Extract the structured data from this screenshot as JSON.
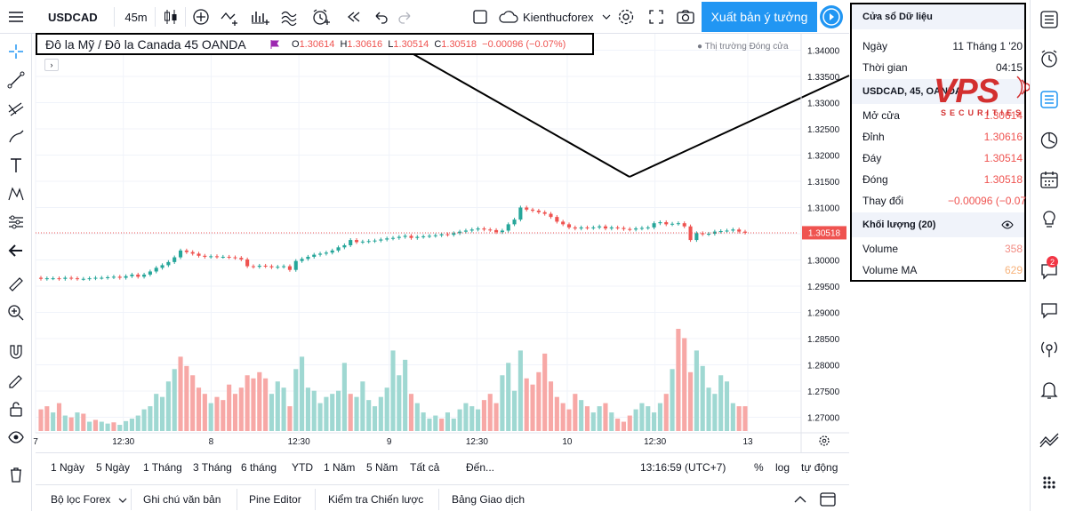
{
  "toolbar": {
    "symbol": "USDCAD",
    "interval": "45m",
    "account": "Kienthucforex",
    "publish_label": "Xuất bản ý tưởng"
  },
  "legend": {
    "title": "Đô la Mỹ / Đô la Canada  45  OANDA",
    "open_label": "O",
    "open": "1.30614",
    "high_label": "H",
    "high": "1.30616",
    "low_label": "L",
    "low": "1.30514",
    "close_label": "C",
    "close": "1.30518",
    "change": "−0.00096 (−0.07%)",
    "market_status": "● Thị trường Đóng cửa",
    "expand": "›"
  },
  "chart_data": {
    "type": "candlestick",
    "symbol": "USDCAD",
    "interval": "45m",
    "last_price": 1.30518,
    "y_ticks": [
      1.34,
      1.335,
      1.33,
      1.325,
      1.32,
      1.315,
      1.31,
      1.305,
      1.3,
      1.295,
      1.29,
      1.285,
      1.28,
      1.275,
      1.27
    ],
    "y_tick_labels": [
      "1.34000",
      "1.33500",
      "1.33000",
      "1.32500",
      "1.32000",
      "1.31500",
      "1.31000",
      "1.30500",
      "1.30000",
      "1.29500",
      "1.29000",
      "1.28500",
      "1.28000",
      "1.27500",
      "1.27000"
    ],
    "x_tick_labels": [
      "7",
      "12:30",
      "8",
      "12:30",
      "9",
      "12:30",
      "10",
      "12:30",
      "13"
    ],
    "close_series": [
      1.2964,
      1.2965,
      1.2965,
      1.2964,
      1.2966,
      1.2965,
      1.2964,
      1.2964,
      1.2965,
      1.2966,
      1.2966,
      1.2967,
      1.2968,
      1.2966,
      1.2969,
      1.2972,
      1.2968,
      1.2972,
      1.2978,
      1.2985,
      1.299,
      1.2996,
      1.3005,
      1.3018,
      1.3015,
      1.3012,
      1.3008,
      1.3006,
      1.3007,
      1.3006,
      1.3006,
      1.3005,
      1.3004,
      1.3001,
      1.2988,
      1.2987,
      1.2989,
      1.2988,
      1.2986,
      1.2987,
      1.2988,
      1.2981,
      1.2998,
      1.3002,
      1.3006,
      1.301,
      1.3012,
      1.3014,
      1.3018,
      1.3024,
      1.3028,
      1.3038,
      1.3034,
      1.3035,
      1.3036,
      1.3037,
      1.3039,
      1.3041,
      1.3042,
      1.3044,
      1.3046,
      1.3042,
      1.3044,
      1.3045,
      1.3046,
      1.3047,
      1.3049,
      1.3048,
      1.3051,
      1.3054,
      1.3056,
      1.3058,
      1.306,
      1.3058,
      1.3057,
      1.3053,
      1.3056,
      1.3068,
      1.3077,
      1.31,
      1.3096,
      1.3094,
      1.3091,
      1.3088,
      1.3082,
      1.3073,
      1.3068,
      1.3062,
      1.306,
      1.3062,
      1.3061,
      1.3062,
      1.3064,
      1.306,
      1.3062,
      1.3061,
      1.3059,
      1.3058,
      1.306,
      1.3061,
      1.3062,
      1.307,
      1.3072,
      1.3068,
      1.3069,
      1.307,
      1.3064,
      1.3038,
      1.3051,
      1.3049,
      1.305,
      1.3054,
      1.3055,
      1.3056,
      1.3058,
      1.3054,
      1.3052
    ],
    "volume_series": [
      35,
      40,
      30,
      45,
      25,
      22,
      30,
      28,
      15,
      18,
      15,
      12,
      14,
      10,
      16,
      20,
      25,
      35,
      40,
      60,
      55,
      80,
      100,
      120,
      105,
      90,
      70,
      60,
      45,
      55,
      50,
      75,
      60,
      70,
      90,
      85,
      95,
      85,
      60,
      80,
      70,
      40,
      100,
      120,
      70,
      65,
      45,
      55,
      60,
      65,
      110,
      60,
      55,
      80,
      50,
      40,
      55,
      70,
      130,
      90,
      115,
      60,
      45,
      30,
      20,
      25,
      20,
      30,
      20,
      35,
      45,
      40,
      35,
      50,
      60,
      45,
      90,
      110,
      65,
      130,
      85,
      75,
      95,
      125,
      80,
      55,
      45,
      35,
      60,
      50,
      40,
      30,
      40,
      45,
      30,
      20,
      15,
      25,
      35,
      45,
      40,
      30,
      45,
      60,
      100,
      165,
      150,
      95,
      130,
      105,
      70,
      60,
      90,
      80,
      45,
      40,
      40
    ],
    "volume_colors": [
      "r",
      "r",
      "g",
      "r",
      "g",
      "r",
      "g",
      "r",
      "g",
      "r",
      "g",
      "g",
      "r",
      "g",
      "g",
      "g",
      "g",
      "g",
      "g",
      "g",
      "g",
      "g",
      "g",
      "r",
      "r",
      "r",
      "r",
      "r",
      "g",
      "r",
      "r",
      "r",
      "r",
      "r",
      "r",
      "r",
      "r",
      "r",
      "g",
      "g",
      "g",
      "r",
      "g",
      "g",
      "g",
      "g",
      "g",
      "g",
      "g",
      "g",
      "g",
      "r",
      "g",
      "g",
      "g",
      "g",
      "g",
      "g",
      "g",
      "g",
      "g",
      "r",
      "g",
      "g",
      "g",
      "g",
      "r",
      "g",
      "g",
      "g",
      "g",
      "g",
      "g",
      "r",
      "r",
      "r",
      "g",
      "g",
      "g",
      "g",
      "r",
      "r",
      "r",
      "r",
      "r",
      "r",
      "r",
      "r",
      "r",
      "g",
      "r",
      "g",
      "g",
      "r",
      "g",
      "r",
      "r",
      "r",
      "g",
      "g",
      "g",
      "g",
      "g",
      "r",
      "g",
      "r",
      "r",
      "r",
      "g",
      "g",
      "g",
      "g",
      "g",
      "g",
      "g",
      "r",
      "r"
    ],
    "colors": {
      "up": "#26a69a",
      "down": "#ef5350",
      "up_volume": "#9fd8d2",
      "down_volume": "#f7a8a6"
    }
  },
  "timeframes": {
    "items": [
      "1 Ngày",
      "5 Ngày",
      "1 Tháng",
      "3 Tháng",
      "6 tháng",
      "YTD",
      "1 Năm",
      "5 Năm",
      "Tất cả"
    ],
    "goto": "Đến...",
    "clock": "13:16:59 (UTC+7)",
    "percent": "%",
    "log": "log",
    "auto": "tự động"
  },
  "bottom_tabs": {
    "items": [
      "Bộ lọc Forex",
      "Ghi chú văn bản",
      "Pine Editor",
      "Kiểm tra Chiến lược",
      "Bảng Giao dịch"
    ]
  },
  "data_window": {
    "title": "Cửa sổ Dữ liệu",
    "date_label": "Ngày",
    "date_value": "11 Tháng 1 '20",
    "time_label": "Thời gian",
    "time_value": "04:15",
    "symbol_header": "USDCAD, 45, OANDA",
    "open_label": "Mở cửa",
    "open_value": "1.30614",
    "high_label": "Đỉnh",
    "high_value": "1.30616",
    "low_label": "Đáy",
    "low_value": "1.30514",
    "close_label": "Đóng",
    "close_value": "1.30518",
    "change_label": "Thay đổi",
    "change_value": "−0.00096 (−0.07",
    "volume_header": "Khối lượng (20)",
    "volume_label": "Volume",
    "volume_value": "358",
    "volume_ma_label": "Volume MA",
    "volume_ma_value": "629"
  },
  "watermark": {
    "brand": "VPS",
    "sub": "SECURITIES"
  },
  "notifications": {
    "count": "2"
  }
}
